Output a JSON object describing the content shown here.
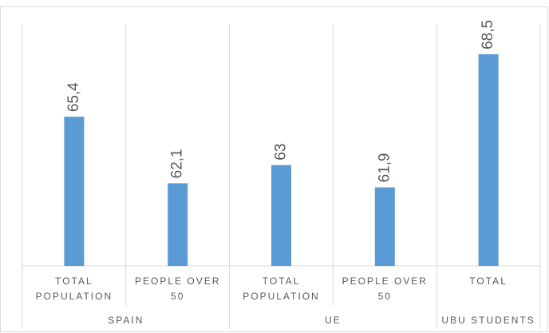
{
  "chart_data": {
    "type": "bar",
    "color": "#5b9bd5",
    "groups": [
      {
        "name": "SPAIN",
        "categories": [
          "TOTAL POPULATION",
          "PEOPLE OVER 50"
        ],
        "values": [
          65.4,
          62.1
        ],
        "value_labels": [
          "65,4",
          "62,1"
        ]
      },
      {
        "name": "UE",
        "categories": [
          "TOTAL POPULATION",
          "PEOPLE OVER 50"
        ],
        "values": [
          63,
          61.9
        ],
        "value_labels": [
          "63",
          "61,9"
        ]
      },
      {
        "name": "UBU STUDENTS",
        "categories": [
          "TOTAL"
        ],
        "values": [
          68.5
        ],
        "value_labels": [
          "68,5"
        ]
      }
    ],
    "ylim": [
      58,
      70
    ]
  }
}
